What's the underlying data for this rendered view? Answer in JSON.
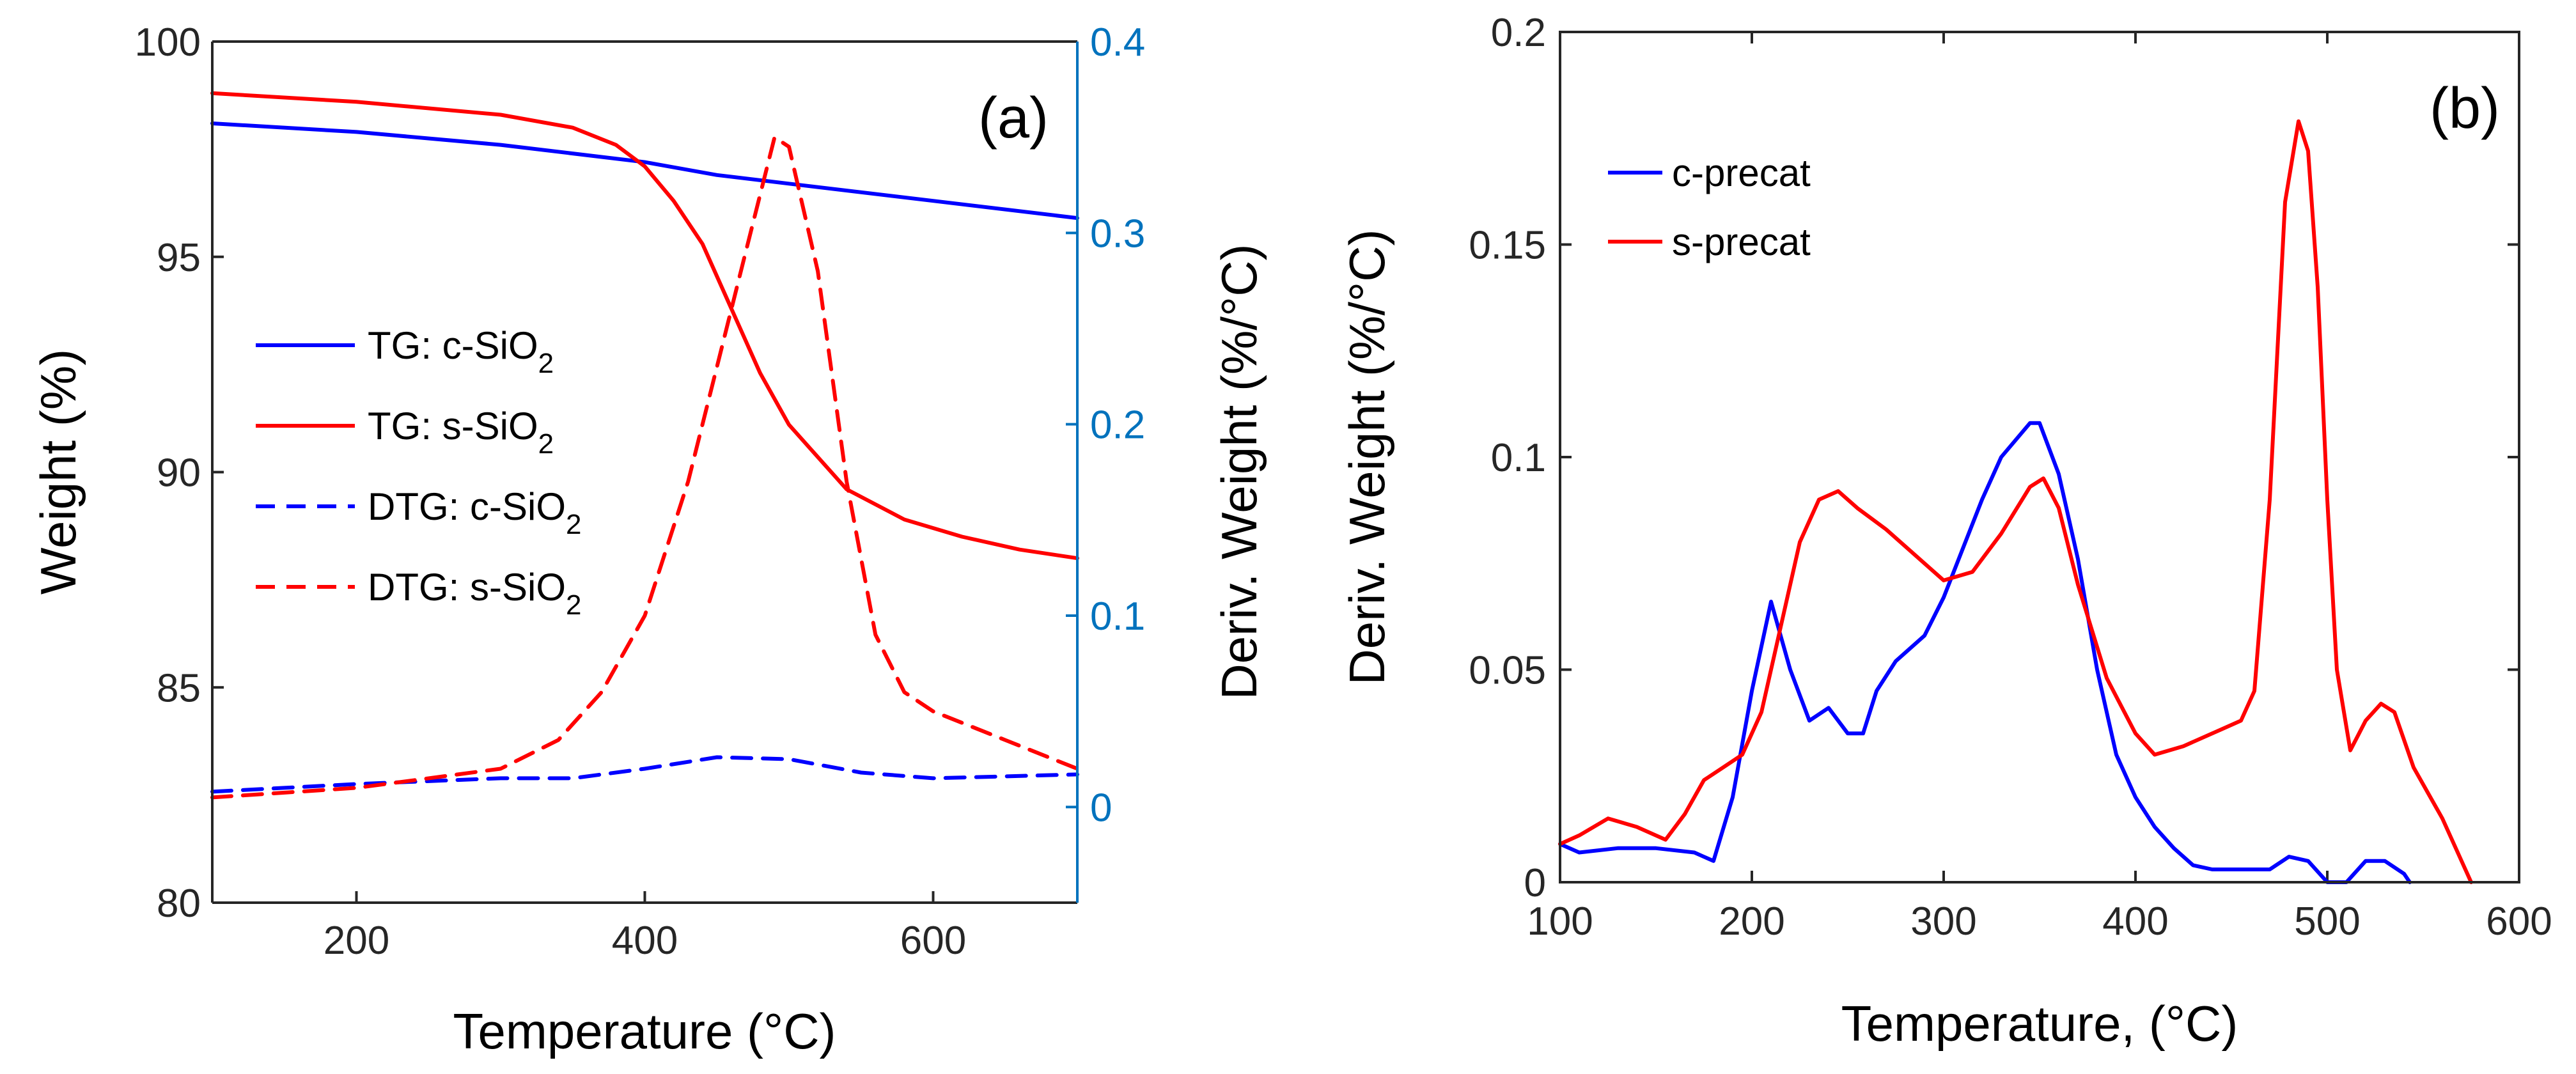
{
  "chart_data": [
    {
      "type": "line",
      "panel_label": "(a)",
      "xlabel": "Temperature (°C)",
      "ylabel": "Weight (%)",
      "y2label": "Deriv. Weight (%/°C)",
      "xlim": [
        100,
        700
      ],
      "ylim": [
        80,
        100
      ],
      "y2lim": [
        -0.05,
        0.4
      ],
      "xticks": [
        "200",
        "400",
        "600"
      ],
      "yticks": [
        "80",
        "85",
        "90",
        "95",
        "100"
      ],
      "y2ticks": [
        "0",
        "0.1",
        "0.2",
        "0.3",
        "0.4"
      ],
      "series": [
        {
          "name": "TG: c-SiO",
          "sub": "2",
          "axis": "left",
          "style": "solid",
          "color": "#0000ff",
          "x": [
            100,
            200,
            300,
            400,
            450,
            500,
            600,
            700
          ],
          "y": [
            98.1,
            97.9,
            97.6,
            97.2,
            96.9,
            96.7,
            96.3,
            95.9
          ]
        },
        {
          "name": "TG: s-SiO",
          "sub": "2",
          "axis": "left",
          "style": "solid",
          "color": "#ff0000",
          "x": [
            100,
            200,
            300,
            350,
            380,
            400,
            420,
            440,
            460,
            480,
            500,
            540,
            580,
            620,
            660,
            700
          ],
          "y": [
            98.8,
            98.6,
            98.3,
            98.0,
            97.6,
            97.1,
            96.3,
            95.3,
            93.8,
            92.3,
            91.1,
            89.6,
            88.9,
            88.5,
            88.2,
            88.0
          ]
        },
        {
          "name": "DTG: c-SiO",
          "sub": "2",
          "axis": "right",
          "style": "dashed",
          "color": "#0000ff",
          "x": [
            100,
            150,
            200,
            300,
            350,
            400,
            450,
            500,
            550,
            600,
            650,
            700
          ],
          "y": [
            0.008,
            0.01,
            0.012,
            0.015,
            0.015,
            0.02,
            0.026,
            0.025,
            0.018,
            0.015,
            0.016,
            0.017
          ]
        },
        {
          "name": "DTG: s-SiO",
          "sub": "2",
          "axis": "right",
          "style": "dashed",
          "color": "#ff0000",
          "x": [
            100,
            200,
            300,
            340,
            370,
            400,
            430,
            450,
            470,
            490,
            500,
            520,
            540,
            560,
            580,
            600,
            650,
            700
          ],
          "y": [
            0.005,
            0.01,
            0.02,
            0.035,
            0.06,
            0.1,
            0.17,
            0.23,
            0.29,
            0.35,
            0.345,
            0.28,
            0.17,
            0.09,
            0.06,
            0.05,
            0.035,
            0.02
          ]
        }
      ],
      "legend_position": "center-left"
    },
    {
      "type": "line",
      "panel_label": "(b)",
      "xlabel": "Temperature, (°C)",
      "ylabel": "Deriv. Weight (%/°C)",
      "xlim": [
        100,
        600
      ],
      "ylim": [
        0,
        0.2
      ],
      "xticks": [
        "100",
        "200",
        "300",
        "400",
        "500",
        "600"
      ],
      "yticks": [
        "0",
        "0.05",
        "0.1",
        "0.15",
        "0.2"
      ],
      "series": [
        {
          "name": "c-precat",
          "style": "solid",
          "color": "#0000ff",
          "x": [
            100,
            110,
            130,
            150,
            170,
            180,
            190,
            200,
            210,
            220,
            230,
            240,
            250,
            258,
            265,
            275,
            290,
            300,
            320,
            330,
            345,
            350,
            360,
            370,
            380,
            390,
            400,
            410,
            420,
            430,
            440,
            460,
            470,
            480,
            490,
            500,
            510,
            520,
            530,
            540,
            543
          ],
          "y": [
            0.009,
            0.007,
            0.008,
            0.008,
            0.007,
            0.005,
            0.02,
            0.045,
            0.066,
            0.05,
            0.038,
            0.041,
            0.035,
            0.035,
            0.045,
            0.052,
            0.058,
            0.067,
            0.09,
            0.1,
            0.108,
            0.108,
            0.096,
            0.076,
            0.05,
            0.03,
            0.02,
            0.013,
            0.008,
            0.004,
            0.003,
            0.003,
            0.003,
            0.006,
            0.005,
            0.0,
            0.0,
            0.005,
            0.005,
            0.002,
            0.0
          ]
        },
        {
          "name": "s-precat",
          "style": "solid",
          "color": "#ff0000",
          "x": [
            100,
            110,
            125,
            140,
            155,
            165,
            175,
            185,
            195,
            205,
            215,
            225,
            235,
            245,
            255,
            270,
            285,
            300,
            315,
            330,
            345,
            352,
            360,
            370,
            385,
            400,
            410,
            425,
            440,
            455,
            462,
            470,
            478,
            485,
            490,
            495,
            500,
            505,
            512,
            520,
            528,
            535,
            545,
            560,
            570,
            575
          ],
          "y": [
            0.009,
            0.011,
            0.015,
            0.013,
            0.01,
            0.016,
            0.024,
            0.027,
            0.03,
            0.04,
            0.06,
            0.08,
            0.09,
            0.092,
            0.088,
            0.083,
            0.077,
            0.071,
            0.073,
            0.082,
            0.093,
            0.095,
            0.088,
            0.07,
            0.048,
            0.035,
            0.03,
            0.032,
            0.035,
            0.038,
            0.045,
            0.09,
            0.16,
            0.179,
            0.172,
            0.14,
            0.09,
            0.05,
            0.031,
            0.038,
            0.042,
            0.04,
            0.027,
            0.015,
            0.005,
            0.0
          ]
        }
      ],
      "legend_position": "top-left"
    }
  ]
}
